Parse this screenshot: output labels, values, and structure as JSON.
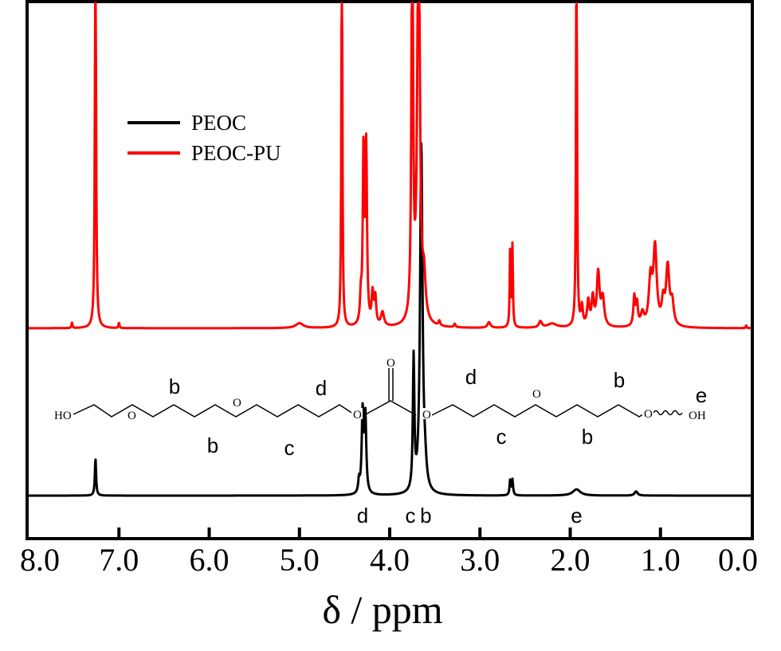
{
  "chart_data": {
    "type": "line",
    "xlabel": "δ / ppm",
    "xlim": [
      8.0,
      0.0
    ],
    "x_reversed": true,
    "x_ticks": [
      "8.0",
      "7.0",
      "6.0",
      "5.0",
      "4.0",
      "3.0",
      "2.0",
      "1.0",
      "0.0"
    ],
    "y_ticks": false,
    "grid": false,
    "legend_position": "top-left",
    "series": [
      {
        "name": "PEOC",
        "color": "#000000",
        "peaks": [
          {
            "x": 7.26,
            "h": 0.27,
            "w": 0.008
          },
          {
            "x": 4.34,
            "h": 0.09,
            "w": 0.01
          },
          {
            "x": 4.3,
            "h": 0.58,
            "w": 0.012
          },
          {
            "x": 4.27,
            "h": 0.55,
            "w": 0.012
          },
          {
            "x": 3.735,
            "h": 0.95,
            "w": 0.01
          },
          {
            "x": 3.65,
            "h": 2.5,
            "w": 0.016
          },
          {
            "x": 3.61,
            "h": 0.14,
            "w": 0.02
          },
          {
            "x": 2.665,
            "h": 0.11,
            "w": 0.008
          },
          {
            "x": 2.64,
            "h": 0.11,
            "w": 0.008
          },
          {
            "x": 1.93,
            "h": 0.045,
            "w": 0.05
          },
          {
            "x": 1.27,
            "h": 0.03,
            "w": 0.02
          }
        ]
      },
      {
        "name": "PEOC-PU",
        "color": "#ff0000",
        "peaks": [
          {
            "x": 7.52,
            "h": 0.04,
            "w": 0.006
          },
          {
            "x": 7.26,
            "h": 3.2,
            "w": 0.007
          },
          {
            "x": 7.0,
            "h": 0.04,
            "w": 0.006
          },
          {
            "x": 5.0,
            "h": 0.035,
            "w": 0.05
          },
          {
            "x": 4.53,
            "h": 3.2,
            "w": 0.006
          },
          {
            "x": 4.32,
            "h": 0.18,
            "w": 0.01
          },
          {
            "x": 4.29,
            "h": 1.25,
            "w": 0.01
          },
          {
            "x": 4.26,
            "h": 1.25,
            "w": 0.01
          },
          {
            "x": 4.19,
            "h": 0.22,
            "w": 0.012
          },
          {
            "x": 4.16,
            "h": 0.2,
            "w": 0.012
          },
          {
            "x": 4.08,
            "h": 0.1,
            "w": 0.02
          },
          {
            "x": 3.75,
            "h": 3.2,
            "w": 0.01
          },
          {
            "x": 3.68,
            "h": 3.2,
            "w": 0.016
          },
          {
            "x": 3.62,
            "h": 0.28,
            "w": 0.02
          },
          {
            "x": 3.45,
            "h": 0.035,
            "w": 0.01
          },
          {
            "x": 3.28,
            "h": 0.025,
            "w": 0.01
          },
          {
            "x": 2.9,
            "h": 0.04,
            "w": 0.02
          },
          {
            "x": 2.665,
            "h": 0.58,
            "w": 0.006
          },
          {
            "x": 2.64,
            "h": 0.58,
            "w": 0.006
          },
          {
            "x": 2.33,
            "h": 0.045,
            "w": 0.02
          },
          {
            "x": 2.2,
            "h": 0.03,
            "w": 0.06
          },
          {
            "x": 1.93,
            "h": 3.2,
            "w": 0.006
          },
          {
            "x": 1.87,
            "h": 0.14,
            "w": 0.012
          },
          {
            "x": 1.8,
            "h": 0.18,
            "w": 0.015
          },
          {
            "x": 1.75,
            "h": 0.2,
            "w": 0.015
          },
          {
            "x": 1.69,
            "h": 0.38,
            "w": 0.018
          },
          {
            "x": 1.64,
            "h": 0.2,
            "w": 0.02
          },
          {
            "x": 1.29,
            "h": 0.21,
            "w": 0.012
          },
          {
            "x": 1.26,
            "h": 0.16,
            "w": 0.012
          },
          {
            "x": 1.2,
            "h": 0.09,
            "w": 0.02
          },
          {
            "x": 1.11,
            "h": 0.33,
            "w": 0.022
          },
          {
            "x": 1.06,
            "h": 0.55,
            "w": 0.022
          },
          {
            "x": 0.97,
            "h": 0.16,
            "w": 0.018
          },
          {
            "x": 0.92,
            "h": 0.42,
            "w": 0.022
          },
          {
            "x": 0.87,
            "h": 0.16,
            "w": 0.02
          },
          {
            "x": 0.05,
            "h": 0.02,
            "w": 0.006
          }
        ]
      }
    ],
    "peak_labels": [
      {
        "text": "d",
        "x": 4.3
      },
      {
        "text": "c",
        "x": 3.77
      },
      {
        "text": "b",
        "x": 3.6
      },
      {
        "text": "e",
        "x": 1.93
      }
    ],
    "structure": {
      "left_end": "HO",
      "right_end": "OH",
      "oxygen": "O",
      "carbonyl_oxygen": "O",
      "letters_top": [
        "b",
        "d",
        "d",
        "b",
        "e"
      ],
      "letters_bottom": [
        "b",
        "c",
        "c",
        "b"
      ]
    }
  }
}
